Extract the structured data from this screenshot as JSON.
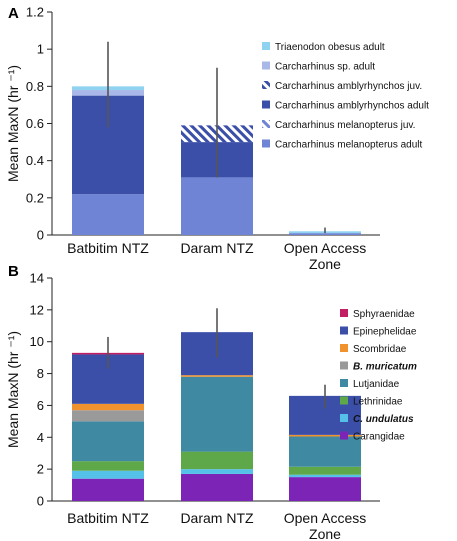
{
  "chart_data": [
    {
      "panel_label": "A",
      "type": "bar",
      "stacked": true,
      "ylabel": "Mean MaxN (hr ⁻¹)",
      "ylim": [
        0,
        1.2
      ],
      "yticks": [
        "0",
        "0.2",
        "0.4",
        "0.6",
        "0.8",
        "1",
        "1.2"
      ],
      "ytick_values": [
        0,
        0.2,
        0.4,
        0.6,
        0.8,
        1.0,
        1.2
      ],
      "categories": [
        "Batbitim NTZ",
        "Daram NTZ",
        "Open Access Zone"
      ],
      "category_lines": [
        [
          "Batbitim NTZ"
        ],
        [
          "Daram NTZ"
        ],
        [
          "Open Access",
          "Zone"
        ]
      ],
      "legend_position": "right",
      "series": [
        {
          "name": "Carcharhinus melanopterus adult",
          "color": "#6f84d4",
          "pattern": "solid",
          "values": [
            0.22,
            0.31,
            0.01
          ]
        },
        {
          "name": "Carcharhinus melanopterus juv.",
          "color": "#6f84d4",
          "pattern": "hatch",
          "values": [
            0.0,
            0.0,
            0.0
          ]
        },
        {
          "name": "Carcharhinus amblyrhynchos adult",
          "color": "#3b4fa8",
          "pattern": "solid",
          "values": [
            0.53,
            0.19,
            0.0
          ]
        },
        {
          "name": "Carcharhinus amblyrhynchos juv.",
          "color": "#3b4fa8",
          "pattern": "hatch",
          "values": [
            0.0,
            0.09,
            0.0
          ]
        },
        {
          "name": "Carcharhinus sp. adult",
          "color": "#a9b8e8",
          "pattern": "solid",
          "values": [
            0.03,
            0.0,
            0.0
          ]
        },
        {
          "name": "Triaenodon obesus adult",
          "color": "#8fd3f0",
          "pattern": "solid",
          "values": [
            0.02,
            0.0,
            0.01
          ]
        }
      ],
      "error_bars": [
        [
          0.58,
          1.04
        ],
        [
          0.31,
          0.9
        ],
        [
          0.01,
          0.04
        ]
      ]
    },
    {
      "panel_label": "B",
      "type": "bar",
      "stacked": true,
      "ylabel": "Mean MaxN (hr ⁻¹)",
      "ylim": [
        0,
        14
      ],
      "yticks": [
        "0",
        "2",
        "4",
        "6",
        "8",
        "10",
        "12",
        "14"
      ],
      "ytick_values": [
        0,
        2,
        4,
        6,
        8,
        10,
        12,
        14
      ],
      "categories": [
        "Batbitim NTZ",
        "Daram NTZ",
        "Open Access Zone"
      ],
      "category_lines": [
        [
          "Batbitim NTZ"
        ],
        [
          "Daram NTZ"
        ],
        [
          "Open Access",
          "Zone"
        ]
      ],
      "legend_position": "right",
      "series": [
        {
          "name": "Carangidae",
          "color": "#7b24b5",
          "italic": false,
          "values": [
            1.4,
            1.7,
            1.5
          ]
        },
        {
          "name": "C. undulatus",
          "color": "#55c0e8",
          "italic": true,
          "values": [
            0.5,
            0.3,
            0.15
          ]
        },
        {
          "name": "Lethrinidae",
          "color": "#5ea84a",
          "italic": false,
          "values": [
            0.6,
            1.1,
            0.5
          ]
        },
        {
          "name": "Lutjanidae",
          "color": "#3f89a3",
          "italic": false,
          "values": [
            2.5,
            4.7,
            1.9
          ]
        },
        {
          "name": "B. muricatum",
          "color": "#9a9a9a",
          "italic": true,
          "values": [
            0.7,
            0.0,
            0.0
          ]
        },
        {
          "name": "Scombridae",
          "color": "#f0922d",
          "italic": false,
          "values": [
            0.4,
            0.1,
            0.1
          ]
        },
        {
          "name": "Epinephelidae",
          "color": "#3b4fa8",
          "italic": false,
          "values": [
            3.1,
            2.7,
            2.45
          ]
        },
        {
          "name": "Sphyraenidae",
          "color": "#c21e64",
          "italic": false,
          "values": [
            0.1,
            0.0,
            0.0
          ]
        }
      ],
      "error_bars": [
        [
          8.3,
          10.3
        ],
        [
          9.0,
          12.1
        ],
        [
          5.8,
          7.3
        ]
      ]
    }
  ]
}
